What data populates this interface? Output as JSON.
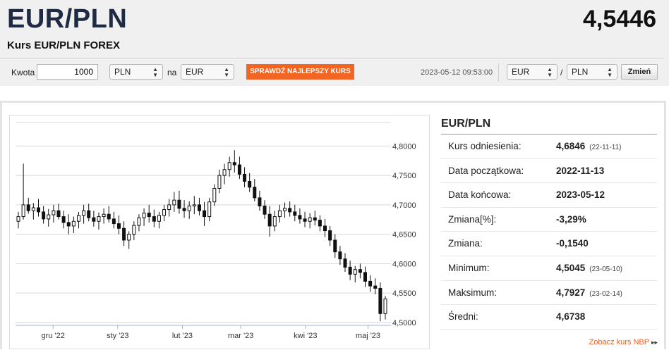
{
  "header": {
    "pair": "EUR/PLN",
    "rate": "4,5446",
    "subtitle": "Kurs EUR/PLN FOREX"
  },
  "converter": {
    "amount_label": "Kwota",
    "amount_value": "1000",
    "from_currency": "PLN",
    "to_label": "na",
    "to_currency": "EUR",
    "best_rate_button": "SPRAWDŹ NAJLEPSZY KURS",
    "timestamp": "2023-05-12 09:53:00",
    "pair_base": "EUR",
    "separator": "/",
    "pair_quote": "PLN",
    "swap_button": "Zmień"
  },
  "stats": {
    "title": "EUR/PLN",
    "rows": [
      {
        "label": "Kurs odniesienia:",
        "value": "4,6846",
        "date": "(22-11-11)"
      },
      {
        "label": "Data początkowa:",
        "value": "2022-11-13",
        "date": ""
      },
      {
        "label": "Data końcowa:",
        "value": "2023-05-12",
        "date": ""
      },
      {
        "label": "Zmiana[%]:",
        "value": "-3,29%",
        "date": ""
      },
      {
        "label": "Zmiana:",
        "value": "-0,1540",
        "date": ""
      },
      {
        "label": "Minimum:",
        "value": "4,5045",
        "date": "(23-05-10)"
      },
      {
        "label": "Maksimum:",
        "value": "4,7927",
        "date": "(23-02-14)"
      },
      {
        "label": "Średni:",
        "value": "4,6738",
        "date": ""
      }
    ]
  },
  "link": {
    "nbp": "Zobacz kurs NBP",
    "arrow": "▸▸"
  },
  "chart_data": {
    "type": "candlestick",
    "x_tick_labels": [
      "gru '22",
      "sty '23",
      "lut '23",
      "mar '23",
      "kwi '23",
      "maj '23"
    ],
    "y_tick_labels": [
      "4,8000",
      "4,7500",
      "4,7000",
      "4,6500",
      "4,6000",
      "4,5500",
      "4,5000"
    ],
    "ylim": [
      4.495,
      4.84
    ],
    "date_range": [
      "2022-11-13",
      "2023-05-12"
    ],
    "x_ticks": [
      "2022-12-01",
      "2023-01-01",
      "2023-02-01",
      "2023-03-01",
      "2023-04-01",
      "2023-05-01"
    ],
    "y_ticks": [
      4.8,
      4.75,
      4.7,
      4.65,
      4.6,
      4.55,
      4.5
    ],
    "grid": true,
    "axis_side": "right",
    "series": [
      {
        "values": [
          [
            4.672,
            4.688,
            4.66,
            4.68
          ],
          [
            4.68,
            4.77,
            4.675,
            4.7
          ],
          [
            4.7,
            4.712,
            4.685,
            4.69
          ],
          [
            4.69,
            4.703,
            4.675,
            4.695
          ],
          [
            4.695,
            4.71,
            4.68,
            4.688
          ],
          [
            4.688,
            4.698,
            4.668,
            4.676
          ],
          [
            4.676,
            4.693,
            4.663,
            4.683
          ],
          [
            4.683,
            4.7,
            4.67,
            4.69
          ],
          [
            4.69,
            4.702,
            4.675,
            4.68
          ],
          [
            4.68,
            4.69,
            4.66,
            4.67
          ],
          [
            4.67,
            4.684,
            4.65,
            4.664
          ],
          [
            4.664,
            4.68,
            4.652,
            4.672
          ],
          [
            4.672,
            4.688,
            4.66,
            4.682
          ],
          [
            4.682,
            4.7,
            4.668,
            4.69
          ],
          [
            4.69,
            4.702,
            4.672,
            4.678
          ],
          [
            4.678,
            4.69,
            4.663,
            4.672
          ],
          [
            4.672,
            4.687,
            4.658,
            4.68
          ],
          [
            4.68,
            4.694,
            4.668,
            4.684
          ],
          [
            4.684,
            4.698,
            4.67,
            4.676
          ],
          [
            4.676,
            4.688,
            4.66,
            4.668
          ],
          [
            4.668,
            4.682,
            4.65,
            4.66
          ],
          [
            4.66,
            4.672,
            4.63,
            4.64
          ],
          [
            4.64,
            4.655,
            4.625,
            4.65
          ],
          [
            4.65,
            4.672,
            4.64,
            4.665
          ],
          [
            4.665,
            4.684,
            4.655,
            4.678
          ],
          [
            4.678,
            4.694,
            4.664,
            4.686
          ],
          [
            4.686,
            4.7,
            4.67,
            4.68
          ],
          [
            4.68,
            4.692,
            4.662,
            4.672
          ],
          [
            4.672,
            4.688,
            4.66,
            4.682
          ],
          [
            4.682,
            4.7,
            4.672,
            4.692
          ],
          [
            4.692,
            4.71,
            4.68,
            4.7
          ],
          [
            4.7,
            4.722,
            4.688,
            4.708
          ],
          [
            4.708,
            4.724,
            4.685,
            4.694
          ],
          [
            4.694,
            4.708,
            4.678,
            4.69
          ],
          [
            4.69,
            4.706,
            4.676,
            4.698
          ],
          [
            4.698,
            4.715,
            4.684,
            4.7
          ],
          [
            4.7,
            4.712,
            4.682,
            4.69
          ],
          [
            4.69,
            4.705,
            4.664,
            4.68
          ],
          [
            4.68,
            4.712,
            4.672,
            4.705
          ],
          [
            4.705,
            4.735,
            4.698,
            4.728
          ],
          [
            4.728,
            4.76,
            4.72,
            4.75
          ],
          [
            4.75,
            4.77,
            4.735,
            4.76
          ],
          [
            4.76,
            4.782,
            4.748,
            4.772
          ],
          [
            4.772,
            4.793,
            4.755,
            4.768
          ],
          [
            4.768,
            4.782,
            4.744,
            4.752
          ],
          [
            4.752,
            4.764,
            4.73,
            4.74
          ],
          [
            4.74,
            4.754,
            4.722,
            4.73
          ],
          [
            4.73,
            4.744,
            4.706,
            4.712
          ],
          [
            4.712,
            4.724,
            4.69,
            4.698
          ],
          [
            4.698,
            4.708,
            4.676,
            4.684
          ],
          [
            4.684,
            4.698,
            4.646,
            4.664
          ],
          [
            4.664,
            4.69,
            4.655,
            4.68
          ],
          [
            4.68,
            4.7,
            4.67,
            4.69
          ],
          [
            4.69,
            4.704,
            4.678,
            4.694
          ],
          [
            4.694,
            4.706,
            4.68,
            4.688
          ],
          [
            4.688,
            4.7,
            4.672,
            4.682
          ],
          [
            4.682,
            4.694,
            4.668,
            4.676
          ],
          [
            4.676,
            4.688,
            4.662,
            4.672
          ],
          [
            4.672,
            4.686,
            4.66,
            4.678
          ],
          [
            4.678,
            4.69,
            4.665,
            4.674
          ],
          [
            4.674,
            4.682,
            4.655,
            4.664
          ],
          [
            4.664,
            4.676,
            4.645,
            4.656
          ],
          [
            4.656,
            4.664,
            4.63,
            4.64
          ],
          [
            4.64,
            4.65,
            4.61,
            4.62
          ],
          [
            4.62,
            4.63,
            4.598,
            4.608
          ],
          [
            4.608,
            4.618,
            4.586,
            4.594
          ],
          [
            4.594,
            4.605,
            4.572,
            4.582
          ],
          [
            4.582,
            4.596,
            4.568,
            4.59
          ],
          [
            4.59,
            4.6,
            4.575,
            4.585
          ],
          [
            4.585,
            4.595,
            4.56,
            4.57
          ],
          [
            4.57,
            4.58,
            4.552,
            4.562
          ],
          [
            4.562,
            4.575,
            4.548,
            4.558
          ],
          [
            4.558,
            4.568,
            4.502,
            4.515
          ],
          [
            4.515,
            4.545,
            4.505,
            4.54
          ]
        ]
      }
    ]
  }
}
